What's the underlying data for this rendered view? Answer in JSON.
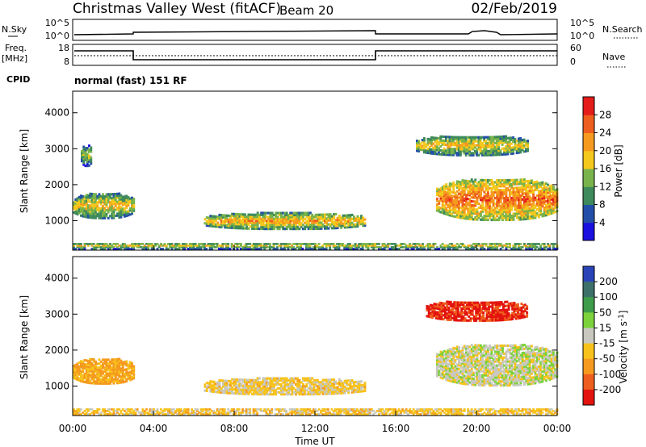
{
  "header": {
    "station": "Christmas Valley West (fitACF)",
    "beam": "Beam 20",
    "date": "02/Feb/2019"
  },
  "nsky_panel": {
    "left_label": "N.Sky",
    "left_ticks": [
      "10^5",
      "10^0"
    ],
    "right_label": "N.Search",
    "right_ticks": [
      "10^5",
      "10^0"
    ]
  },
  "freq_panel": {
    "left_label_line1": "Freq.",
    "left_label_line2": "[MHz]",
    "left_ticks": [
      "18",
      "8"
    ],
    "right_label": "Nave",
    "right_ticks": [
      "60",
      "0"
    ]
  },
  "cpid": {
    "label": "CPID",
    "value": "normal (fast) 151 RF"
  },
  "chart_data": [
    {
      "type": "heatmap",
      "name": "power",
      "ylabel": "Slant Range [km]",
      "ylim": [
        180,
        4600
      ],
      "yticks": [
        1000,
        2000,
        3000,
        4000
      ],
      "xlim_hours": [
        0,
        24
      ],
      "colorbar": {
        "label": "Power [dB]",
        "ticks": [
          "4",
          "8",
          "12",
          "16",
          "20",
          "24",
          "28"
        ],
        "levels": [
          4,
          8,
          12,
          16,
          20,
          24,
          28
        ],
        "colors": [
          "#1a10e0",
          "#234fa8",
          "#3f8a5c",
          "#79b34b",
          "#f4c81c",
          "#f59a1f",
          "#ee5e1e",
          "#e41d1a"
        ]
      },
      "regions": [
        {
          "t": [
            0.0,
            3.0
          ],
          "range": [
            1050,
            1750
          ],
          "level": 14
        },
        {
          "t": [
            0.4,
            0.9
          ],
          "range": [
            2500,
            3100
          ],
          "level": 10
        },
        {
          "t": [
            6.5,
            14.5
          ],
          "range": [
            750,
            1200
          ],
          "level": 16
        },
        {
          "t": [
            17.0,
            22.5
          ],
          "range": [
            2800,
            3350
          ],
          "level": 14
        },
        {
          "t": [
            18.0,
            24.0
          ],
          "range": [
            1000,
            2150
          ],
          "level": 20
        },
        {
          "t": [
            0.0,
            24.0
          ],
          "range": [
            200,
            380
          ],
          "level": 12
        }
      ]
    },
    {
      "type": "heatmap",
      "name": "velocity",
      "ylabel": "Slant Range [km]",
      "ylim": [
        180,
        4600
      ],
      "yticks": [
        1000,
        2000,
        3000,
        4000
      ],
      "xlim_hours": [
        0,
        24
      ],
      "xticks": [
        "00:00",
        "04:00",
        "08:00",
        "12:00",
        "16:00",
        "20:00",
        "00:00"
      ],
      "xlabel": "Time UT",
      "colorbar": {
        "label": "Velocity [m s^-1]",
        "ticks": [
          "200",
          "100",
          "50",
          "15",
          "-15",
          "-50",
          "-100",
          "-200"
        ],
        "levels": [
          200,
          100,
          50,
          15,
          -15,
          -50,
          -100,
          -200
        ],
        "colors": [
          "#2a44b8",
          "#3d7068",
          "#3f9c4a",
          "#7cd23a",
          "#c8c8c0",
          "#f7c21c",
          "#f59a1f",
          "#ee5e1e",
          "#e3140f"
        ]
      },
      "regions": [
        {
          "t": [
            0.0,
            3.0
          ],
          "range": [
            1050,
            1750
          ],
          "level": -60
        },
        {
          "t": [
            6.5,
            14.5
          ],
          "range": [
            750,
            1200
          ],
          "level": -25
        },
        {
          "t": [
            17.5,
            22.5
          ],
          "range": [
            2800,
            3350
          ],
          "level": -220
        },
        {
          "t": [
            18.0,
            24.0
          ],
          "range": [
            1000,
            2150
          ],
          "level": 0
        },
        {
          "t": [
            0.0,
            24.0
          ],
          "range": [
            200,
            380
          ],
          "level": -30
        }
      ]
    }
  ]
}
